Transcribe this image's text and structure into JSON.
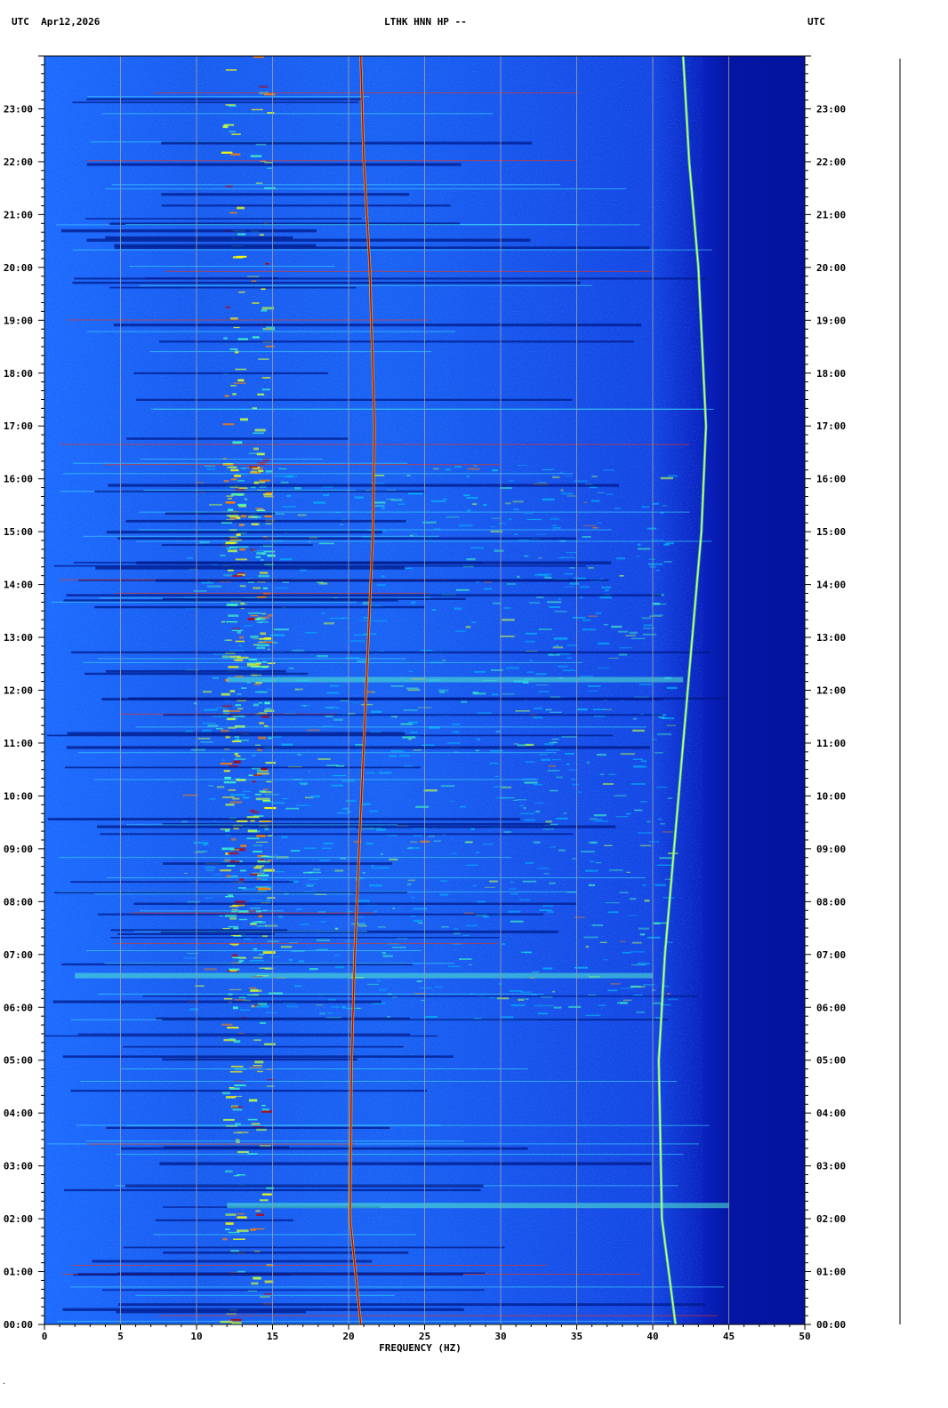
{
  "header": {
    "left": "UTC  Apr12,2026",
    "center": "LTHK HNN HP --",
    "right": "UTC"
  },
  "chart_data": {
    "type": "heatmap",
    "title": "LTHK HNN HP --",
    "date": "Apr12,2026",
    "xlabel": "FREQUENCY (HZ)",
    "ylabel": "UTC",
    "xlim": [
      0,
      50
    ],
    "ylim": [
      "00:00",
      "24:00"
    ],
    "x_ticks": [
      "0",
      "5",
      "10",
      "15",
      "20",
      "25",
      "30",
      "35",
      "40",
      "45",
      "50"
    ],
    "y_ticks_left": [
      "00:00",
      "01:00",
      "02:00",
      "03:00",
      "04:00",
      "05:00",
      "06:00",
      "07:00",
      "08:00",
      "09:00",
      "10:00",
      "11:00",
      "12:00",
      "13:00",
      "14:00",
      "15:00",
      "16:00",
      "17:00",
      "18:00",
      "19:00",
      "20:00",
      "21:00",
      "22:00",
      "23:00"
    ],
    "y_ticks_right": [
      "00:00",
      "01:00",
      "02:00",
      "03:00",
      "04:00",
      "05:00",
      "06:00",
      "07:00",
      "08:00",
      "09:00",
      "10:00",
      "11:00",
      "12:00",
      "13:00",
      "14:00",
      "15:00",
      "16:00",
      "17:00",
      "18:00",
      "19:00",
      "20:00",
      "21:00",
      "22:00",
      "23:00"
    ],
    "grid": true,
    "colormap": [
      "#00007f",
      "#0000ff",
      "#0060ff",
      "#00c8ff",
      "#40ffc0",
      "#c0ff40",
      "#ffff00",
      "#ff8000",
      "#c00000"
    ],
    "features": [
      {
        "name": "Tonal line A",
        "points": [
          [
            20.8,
            0
          ],
          [
            20.1,
            2
          ],
          [
            20.2,
            5
          ],
          [
            20.4,
            7
          ],
          [
            21.0,
            11
          ],
          [
            21.6,
            15
          ],
          [
            21.7,
            17
          ],
          [
            21.4,
            20
          ],
          [
            21.0,
            22
          ],
          [
            20.8,
            24
          ]
        ]
      },
      {
        "name": "Tonal line B",
        "points": [
          [
            41.5,
            0
          ],
          [
            40.6,
            2
          ],
          [
            40.4,
            5
          ],
          [
            40.8,
            7
          ],
          [
            42.0,
            11
          ],
          [
            43.2,
            15
          ],
          [
            43.5,
            17
          ],
          [
            43.0,
            20
          ],
          [
            42.4,
            22
          ],
          [
            42.0,
            24
          ]
        ]
      },
      {
        "name": "Band 12.5 Hz",
        "points": [
          [
            12.5,
            0
          ],
          [
            12.5,
            24
          ]
        ]
      },
      {
        "name": "Band 14.3 Hz",
        "points": [
          [
            14.3,
            0
          ],
          [
            14.3,
            24
          ]
        ]
      }
    ]
  }
}
